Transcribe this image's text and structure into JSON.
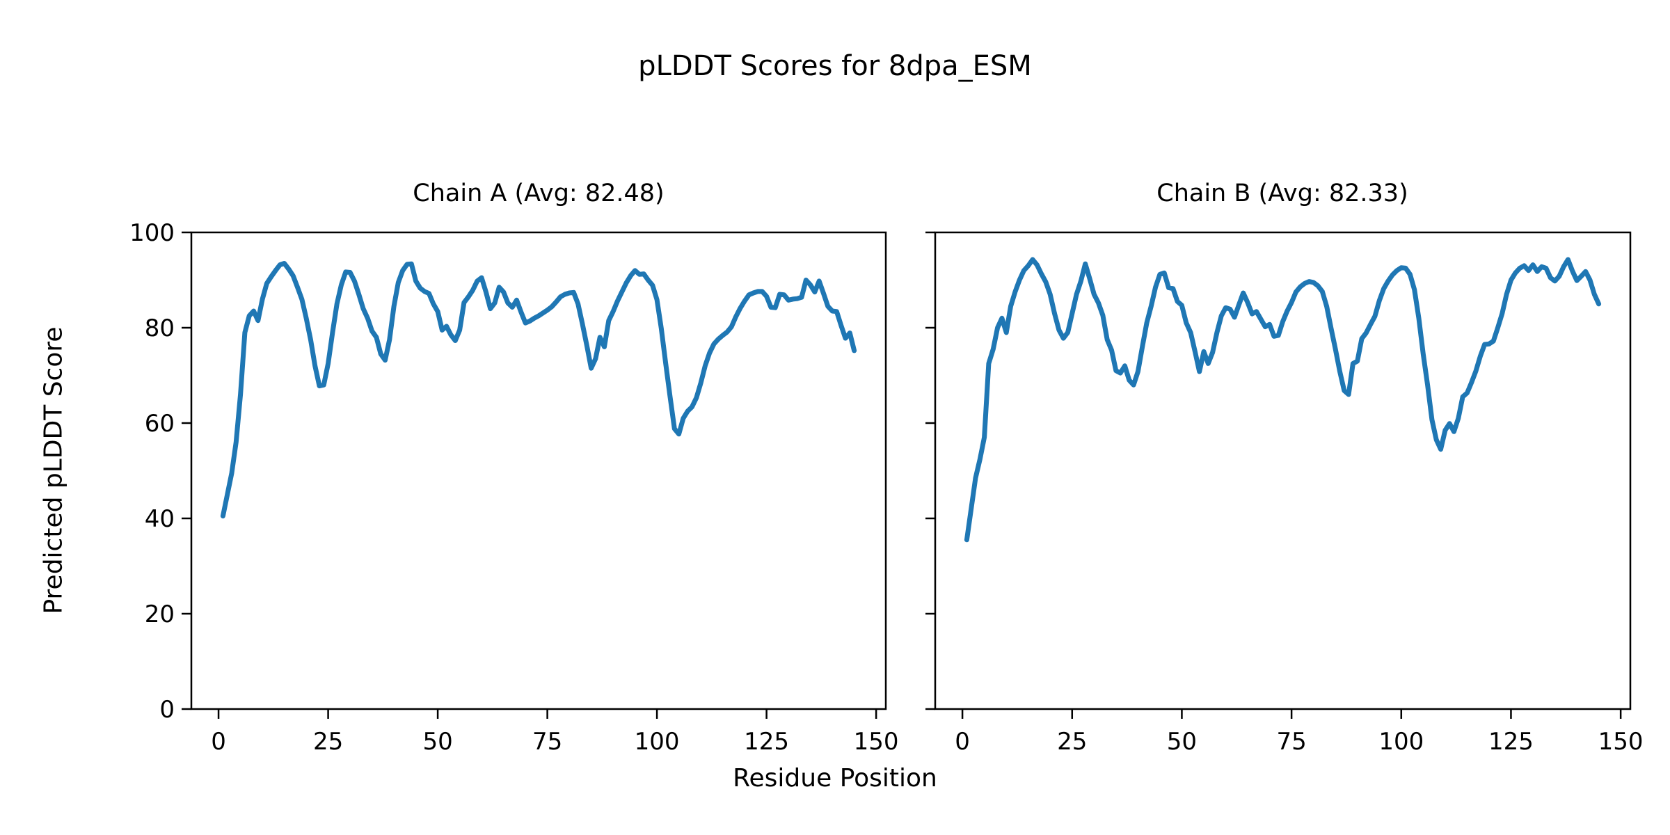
{
  "figure": {
    "title": "pLDDT Scores for 8dpa_ESM",
    "xlabel": "Residue Position",
    "ylabel": "Predicted pLDDT Score",
    "background_color": "#ffffff",
    "text_color": "#000000"
  },
  "chart_data": [
    {
      "type": "line",
      "title": "Chain A (Avg: 82.48)",
      "avg_label": "82.48",
      "xlabel": "Residue Position",
      "ylabel": "Predicted pLDDT Score",
      "xlim": [
        -6.2,
        152.2
      ],
      "ylim": [
        0,
        100
      ],
      "x_ticks": [
        0,
        25,
        50,
        75,
        100,
        125,
        150
      ],
      "y_ticks": [
        0,
        20,
        40,
        60,
        80,
        100
      ],
      "y_tick_labels_visible": true,
      "grid": false,
      "line_color": "#1f77b4",
      "series": [
        {
          "name": "Chain A",
          "x_start": 1,
          "values": [
            40.5,
            45,
            49.5,
            56,
            66,
            79,
            82.5,
            83.5,
            81.5,
            86,
            89.3,
            90.7,
            92,
            93.2,
            93.5,
            92.3,
            90.9,
            88.5,
            86,
            82,
            77.5,
            72,
            67.8,
            68,
            72.5,
            79,
            85,
            89,
            91.7,
            91.6,
            89.8,
            87,
            84,
            82,
            79.3,
            78,
            74.5,
            73.2,
            77.5,
            84.5,
            89.5,
            92,
            93.3,
            93.4,
            89.8,
            88.3,
            87.6,
            87.2,
            85,
            83.4,
            79.5,
            80.3,
            78.5,
            77.3,
            79.5,
            85.3,
            86.5,
            87.9,
            89.8,
            90.5,
            87.5,
            84,
            85.2,
            88.5,
            87.5,
            85.2,
            84.3,
            85.8,
            83.3,
            81,
            81.4,
            82,
            82.5,
            83.1,
            83.7,
            84.4,
            85.4,
            86.5,
            87,
            87.3,
            87.4,
            85,
            80.8,
            76.3,
            71.5,
            73.5,
            78,
            76,
            81.5,
            83.4,
            85.6,
            87.5,
            89.4,
            90.9,
            92,
            91.2,
            91.3,
            90,
            88.9,
            85.9,
            79.8,
            72.5,
            65.5,
            58.8,
            57.7,
            61,
            62.5,
            63.4,
            65.3,
            68.4,
            72,
            74.7,
            76.6,
            77.6,
            78.4,
            79.1,
            80.2,
            82.3,
            84.1,
            85.6,
            86.9,
            87.3,
            87.6,
            87.6,
            86.6,
            84.3,
            84.2,
            87,
            86.9,
            85.8,
            86,
            86.1,
            86.4,
            90,
            89,
            87.5,
            89.8,
            87.2,
            84.5,
            83.5,
            83.4,
            80.5,
            77.8,
            78.9,
            75.2
          ]
        }
      ]
    },
    {
      "type": "line",
      "title": "Chain B (Avg: 82.33)",
      "avg_label": "82.33",
      "xlabel": "Residue Position",
      "ylabel": "Predicted pLDDT Score",
      "xlim": [
        -6.2,
        152.2
      ],
      "ylim": [
        0,
        100
      ],
      "x_ticks": [
        0,
        25,
        50,
        75,
        100,
        125,
        150
      ],
      "y_ticks": [
        0,
        20,
        40,
        60,
        80,
        100
      ],
      "y_tick_labels_visible": false,
      "grid": false,
      "line_color": "#1f77b4",
      "series": [
        {
          "name": "Chain B",
          "x_start": 1,
          "values": [
            35.5,
            42,
            48.5,
            52.4,
            57,
            72.5,
            75.5,
            80,
            82,
            79,
            84.5,
            87.5,
            90,
            92,
            93,
            94.3,
            93.2,
            91.3,
            89.6,
            87,
            83,
            79.5,
            77.8,
            79,
            83,
            87,
            89.8,
            93.4,
            90.3,
            87,
            85.2,
            82.6,
            77.5,
            75.3,
            71,
            70.5,
            72,
            69,
            68,
            70.8,
            76,
            81,
            84.5,
            88.5,
            91.2,
            91.5,
            88.4,
            88.2,
            85.5,
            84.7,
            81,
            79,
            75,
            70.8,
            75,
            72.5,
            74.8,
            79,
            82.5,
            84.2,
            83.9,
            82.2,
            84.8,
            87.3,
            85.3,
            82.9,
            83.4,
            81.8,
            80.2,
            80.7,
            78.2,
            78.4,
            81.3,
            83.5,
            85.3,
            87.5,
            88.6,
            89.3,
            89.7,
            89.5,
            88.8,
            87.6,
            84.5,
            79.9,
            75.5,
            70.8,
            66.8,
            66,
            72.5,
            73,
            77.7,
            78.9,
            80.7,
            82.4,
            85.7,
            88.2,
            89.8,
            91.1,
            92,
            92.6,
            92.5,
            91.2,
            88,
            82,
            74.5,
            68,
            60.7,
            56.5,
            54.5,
            58.5,
            59.9,
            58.2,
            61,
            65.5,
            66.3,
            68.5,
            70.9,
            74,
            76.5,
            76.6,
            77.2,
            80,
            83,
            87,
            90,
            91.5,
            92.5,
            93,
            92,
            93.2,
            91.8,
            92.8,
            92.5,
            90.5,
            89.8,
            90.8,
            92.8,
            94.3,
            91.9,
            89.9,
            90.8,
            91.8,
            90,
            87,
            85
          ]
        }
      ]
    }
  ]
}
